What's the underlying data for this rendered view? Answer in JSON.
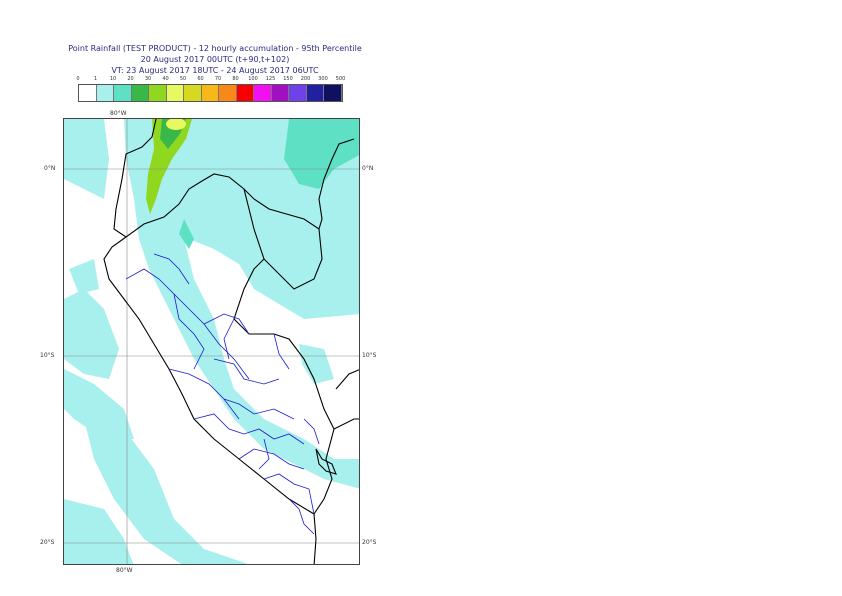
{
  "title": {
    "line1": "Point Rainfall (TEST PRODUCT) - 12 hourly accumulation - 95th Percentile",
    "line2": "20 August 2017 00UTC (t+90,t+102)",
    "line3": "VT: 23 August 2017 18UTC - 24 August 2017 06UTC"
  },
  "legend": {
    "labels": [
      "0",
      "1",
      "10",
      "20",
      "30",
      "40",
      "50",
      "60",
      "70",
      "80",
      "100",
      "125",
      "150",
      "200",
      "300",
      "500"
    ],
    "colors": [
      "#ffffff",
      "#a8f0ee",
      "#5ee0c4",
      "#38b848",
      "#90d820",
      "#e8f860",
      "#d8d820",
      "#f8b818",
      "#f88818",
      "#f80000",
      "#f010f0",
      "#a010c0",
      "#7040e8",
      "#2020a0",
      "#101060"
    ]
  },
  "map": {
    "lon_labels": {
      "top": "80°W",
      "bottom": "80°W"
    },
    "lat_labels": {
      "left": [
        "0°N",
        "10°S",
        "20°S"
      ],
      "right": [
        "0°N",
        "10°S",
        "20°S"
      ]
    },
    "colors": {
      "sea_fill": "#a8f0ee",
      "heavy": "#5ee0c4",
      "country_border": "#000000",
      "region_border": "#1a1ad0",
      "graticule": "#888888"
    }
  }
}
